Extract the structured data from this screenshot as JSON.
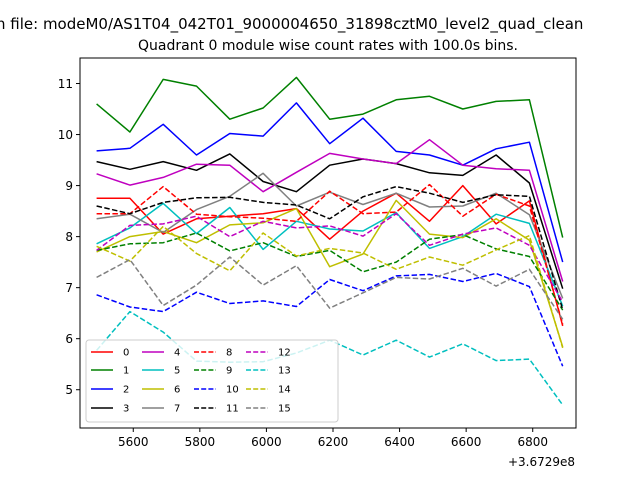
{
  "chart_data": {
    "type": "line",
    "suptitle": "n file: modeM0/AS1T04_042T01_9000004650_31898cztM0_level2_quad_clean",
    "title": "Quadrant 0 module wise count rates with 100.0s bins.",
    "xlabel": "",
    "ylabel": "",
    "x_offset_label": "+3.6729e8",
    "xlim": [
      5440,
      6930
    ],
    "ylim": [
      4.25,
      11.5
    ],
    "xticks": [
      5600,
      5800,
      6000,
      6200,
      6400,
      6600,
      6800
    ],
    "xtick_labels": [
      "5600",
      "5800",
      "6000",
      "6200",
      "6400",
      "6600",
      "6800"
    ],
    "yticks": [
      5,
      6,
      7,
      8,
      9,
      10,
      11
    ],
    "ytick_labels": [
      "5",
      "6",
      "7",
      "8",
      "9",
      "10",
      "11"
    ],
    "x": [
      5490,
      5590,
      5690,
      5790,
      5890,
      5990,
      6090,
      6190,
      6290,
      6390,
      6490,
      6590,
      6690,
      6790,
      6890
    ],
    "legend_position": "lower-left",
    "legend_columns": 5,
    "series": [
      {
        "name": "0",
        "color": "#ff0000",
        "style": "solid",
        "values": [
          8.75,
          8.75,
          8.05,
          8.35,
          8.4,
          8.45,
          8.55,
          7.95,
          8.5,
          8.85,
          8.3,
          9.0,
          8.25,
          8.7,
          6.25
        ]
      },
      {
        "name": "1",
        "color": "#008000",
        "style": "solid",
        "values": [
          10.6,
          10.05,
          11.08,
          10.95,
          10.3,
          10.52,
          11.12,
          10.3,
          10.4,
          10.68,
          10.75,
          10.5,
          10.65,
          10.68,
          7.98
        ]
      },
      {
        "name": "2",
        "color": "#0000ff",
        "style": "solid",
        "values": [
          9.68,
          9.73,
          10.2,
          9.6,
          10.02,
          9.97,
          10.62,
          9.82,
          10.32,
          9.67,
          9.6,
          9.4,
          9.72,
          9.85,
          7.5
        ]
      },
      {
        "name": "3",
        "color": "#000000",
        "style": "solid",
        "values": [
          9.47,
          9.32,
          9.47,
          9.3,
          9.62,
          9.08,
          8.88,
          9.4,
          9.52,
          9.43,
          9.25,
          9.2,
          9.6,
          9.05,
          6.98
        ]
      },
      {
        "name": "4",
        "color": "#bf00bf",
        "style": "solid",
        "values": [
          9.23,
          9.01,
          9.16,
          9.42,
          9.4,
          8.88,
          9.26,
          9.63,
          9.52,
          9.43,
          9.9,
          9.4,
          9.33,
          9.3,
          7.12
        ]
      },
      {
        "name": "5",
        "color": "#00bfbf",
        "style": "solid",
        "values": [
          7.86,
          8.17,
          8.65,
          8.06,
          8.57,
          7.75,
          8.3,
          8.15,
          8.11,
          8.47,
          7.77,
          8.0,
          8.44,
          8.26,
          6.64
        ]
      },
      {
        "name": "6",
        "color": "#bfbf00",
        "style": "solid",
        "values": [
          7.7,
          8.0,
          8.1,
          7.88,
          8.23,
          8.27,
          8.55,
          7.41,
          7.66,
          8.71,
          8.05,
          7.98,
          8.35,
          7.93,
          5.84
        ]
      },
      {
        "name": "7",
        "color": "#808080",
        "style": "solid",
        "values": [
          8.35,
          8.44,
          8.08,
          8.53,
          8.79,
          9.24,
          8.6,
          8.87,
          8.63,
          8.85,
          8.58,
          8.6,
          8.85,
          8.43,
          6.79
        ]
      },
      {
        "name": "8",
        "color": "#ff0000",
        "style": "dashed",
        "values": [
          8.45,
          8.45,
          8.98,
          8.44,
          8.39,
          8.36,
          8.3,
          8.89,
          8.45,
          8.48,
          9.02,
          8.4,
          8.83,
          8.6,
          6.28
        ]
      },
      {
        "name": "9",
        "color": "#008000",
        "style": "dashed",
        "values": [
          7.73,
          7.86,
          7.88,
          8.07,
          7.72,
          7.88,
          7.61,
          7.73,
          7.31,
          7.5,
          7.95,
          8.04,
          7.76,
          7.61,
          6.56
        ]
      },
      {
        "name": "10",
        "color": "#0000ff",
        "style": "dashed",
        "values": [
          6.86,
          6.62,
          6.53,
          6.91,
          6.69,
          6.74,
          6.63,
          7.16,
          6.94,
          7.23,
          7.26,
          7.12,
          7.28,
          7.02,
          5.46
        ]
      },
      {
        "name": "11",
        "color": "#000000",
        "style": "dashed",
        "values": [
          8.6,
          8.45,
          8.67,
          8.76,
          8.77,
          8.67,
          8.62,
          8.35,
          8.78,
          8.98,
          8.85,
          8.67,
          8.82,
          8.79,
          6.57
        ]
      },
      {
        "name": "12",
        "color": "#bf00bf",
        "style": "dashed",
        "values": [
          7.73,
          8.22,
          8.25,
          8.4,
          8.0,
          8.3,
          8.17,
          8.21,
          8.01,
          8.45,
          7.83,
          8.05,
          8.17,
          7.83,
          6.72
        ]
      },
      {
        "name": "13",
        "color": "#00bfbf",
        "style": "dashed",
        "values": [
          5.77,
          6.53,
          6.13,
          5.56,
          5.54,
          5.55,
          5.72,
          5.97,
          5.68,
          5.97,
          5.64,
          5.9,
          5.57,
          5.6,
          4.7
        ]
      },
      {
        "name": "14",
        "color": "#bfbf00",
        "style": "dashed",
        "values": [
          7.81,
          7.52,
          8.2,
          7.67,
          7.33,
          8.07,
          7.62,
          7.77,
          7.68,
          7.36,
          7.6,
          7.44,
          7.74,
          8.02,
          5.82
        ]
      },
      {
        "name": "15",
        "color": "#808080",
        "style": "dashed",
        "values": [
          7.2,
          7.55,
          6.65,
          7.05,
          7.6,
          7.05,
          7.43,
          6.6,
          6.9,
          7.2,
          7.17,
          7.38,
          7.03,
          7.36,
          6.38
        ]
      }
    ]
  }
}
